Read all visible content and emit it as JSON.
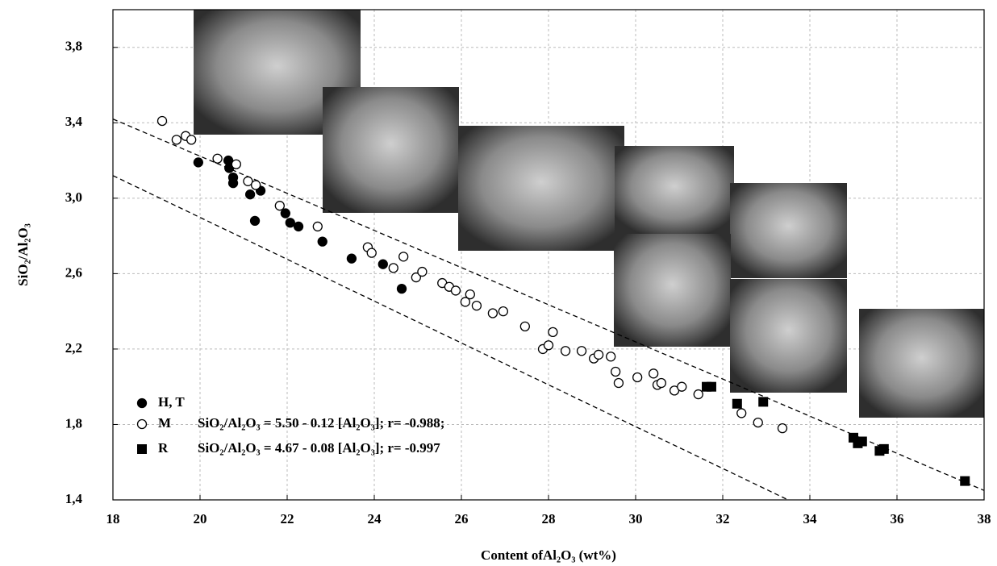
{
  "chart_data": {
    "type": "scatter",
    "x_label": "Content ofAl₂O₃ (wt%)",
    "y_label": "SiO₂/Al₂O₃",
    "xlim": [
      18,
      38
    ],
    "ylim": [
      1.4,
      4.0
    ],
    "xticks": [
      18,
      20,
      22,
      24,
      26,
      28,
      30,
      32,
      34,
      36,
      38
    ],
    "yticks": [
      {
        "value": 1.4,
        "label": "1,4"
      },
      {
        "value": 1.8,
        "label": "1,8"
      },
      {
        "value": 2.2,
        "label": "2,2"
      },
      {
        "value": 2.6,
        "label": "2,6"
      },
      {
        "value": 3.0,
        "label": "3,0"
      },
      {
        "value": 3.4,
        "label": "3,4"
      },
      {
        "value": 3.8,
        "label": "3,8"
      }
    ],
    "grid": true,
    "series": [
      {
        "name": "H, T",
        "color": "#000000",
        "marker": "filled-circle",
        "x": [
          19.96,
          20.65,
          20.67,
          20.76,
          20.76,
          21.15,
          21.26,
          21.39,
          21.96,
          22.07,
          22.26,
          22.81,
          23.48,
          24.2,
          24.63
        ],
        "values": [
          3.19,
          3.2,
          3.16,
          3.11,
          3.08,
          3.02,
          2.88,
          3.04,
          2.92,
          2.87,
          2.85,
          2.77,
          2.68,
          2.65,
          2.52
        ]
      },
      {
        "name": "M",
        "color": "#000000",
        "marker": "open-circle",
        "x": [
          19.13,
          19.46,
          19.67,
          19.8,
          20.4,
          20.83,
          21.1,
          21.28,
          21.83,
          22.7,
          23.85,
          23.94,
          24.44,
          24.67,
          24.96,
          25.1,
          25.56,
          25.72,
          25.87,
          26.09,
          26.2,
          26.35,
          26.72,
          26.96,
          27.46,
          28.1,
          27.87,
          28.0,
          28.39,
          28.76,
          29.04,
          29.15,
          29.43,
          29.54,
          29.61,
          30.04,
          30.41,
          30.5,
          30.59,
          30.89,
          31.06,
          31.44,
          32.43,
          32.81,
          33.37
        ],
        "values": [
          3.41,
          3.31,
          3.33,
          3.31,
          3.21,
          3.18,
          3.09,
          3.07,
          2.96,
          2.85,
          2.74,
          2.71,
          2.63,
          2.69,
          2.58,
          2.61,
          2.55,
          2.53,
          2.51,
          2.45,
          2.49,
          2.43,
          2.39,
          2.4,
          2.32,
          2.29,
          2.2,
          2.22,
          2.19,
          2.19,
          2.15,
          2.17,
          2.16,
          2.08,
          2.02,
          2.05,
          2.07,
          2.01,
          2.02,
          1.98,
          2.0,
          1.96,
          1.86,
          1.81,
          1.78
        ]
      },
      {
        "name": "R",
        "color": "#000000",
        "marker": "square",
        "x": [
          31.63,
          31.74,
          32.33,
          32.93,
          35.0,
          35.1,
          35.2,
          35.6,
          35.7,
          37.56
        ],
        "values": [
          2.0,
          2.0,
          1.91,
          1.92,
          1.73,
          1.7,
          1.71,
          1.66,
          1.67,
          1.5
        ]
      }
    ],
    "trend_lines": [
      {
        "x": [
          18,
          38
        ],
        "values": [
          3.42,
          1.45
        ]
      },
      {
        "x": [
          18,
          33.5
        ],
        "values": [
          3.12,
          1.4
        ]
      }
    ],
    "annotations": [
      "SiO₂/Al₂O₃ = 5.50 - 0.12 [Al₂O₃]; r= -0.988;",
      "SiO₂/Al₂O₃ = 4.67 - 0.08 [Al₂O₃]; r= -0.997"
    ]
  }
}
